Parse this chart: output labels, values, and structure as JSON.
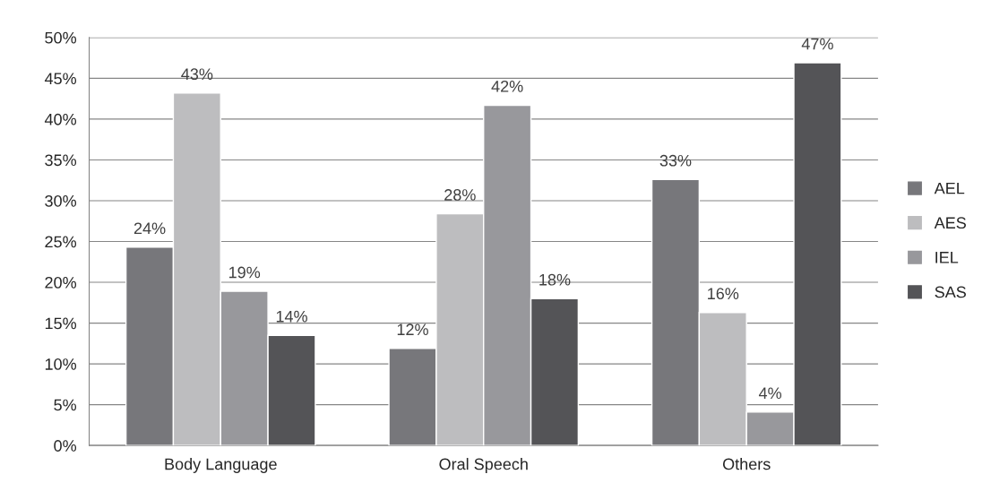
{
  "chart_data": {
    "type": "bar",
    "categories": [
      "Body Language",
      "Oral Speech",
      "Others"
    ],
    "series": [
      {
        "name": "AEL",
        "color": "#77777b",
        "values": [
          24.3,
          11.9,
          32.6
        ],
        "value_labels": [
          "24%",
          "12%",
          "33%"
        ]
      },
      {
        "name": "AES",
        "color": "#bdbdbf",
        "values": [
          43.2,
          28.4,
          16.3
        ],
        "value_labels": [
          "43%",
          "28%",
          "16%"
        ]
      },
      {
        "name": "IEL",
        "color": "#98989c",
        "values": [
          18.9,
          41.7,
          4.1
        ],
        "value_labels": [
          "19%",
          "42%",
          "4%"
        ]
      },
      {
        "name": "SAS",
        "color": "#545457",
        "values": [
          13.5,
          18.0,
          46.9
        ],
        "value_labels": [
          "14%",
          "18%",
          "47%"
        ]
      }
    ],
    "ylim": [
      0,
      50
    ],
    "yticks": [
      {
        "value": 0,
        "label": "0%"
      },
      {
        "value": 5,
        "label": "5%"
      },
      {
        "value": 10,
        "label": "10%"
      },
      {
        "value": 15,
        "label": "15%"
      },
      {
        "value": 20,
        "label": "20%"
      },
      {
        "value": 25,
        "label": "25%"
      },
      {
        "value": 30,
        "label": "30%"
      },
      {
        "value": 35,
        "label": "35%"
      },
      {
        "value": 40,
        "label": "40%"
      },
      {
        "value": 45,
        "label": "45%"
      },
      {
        "value": 50,
        "label": "50%"
      }
    ],
    "grid": "y",
    "legend": "right"
  }
}
